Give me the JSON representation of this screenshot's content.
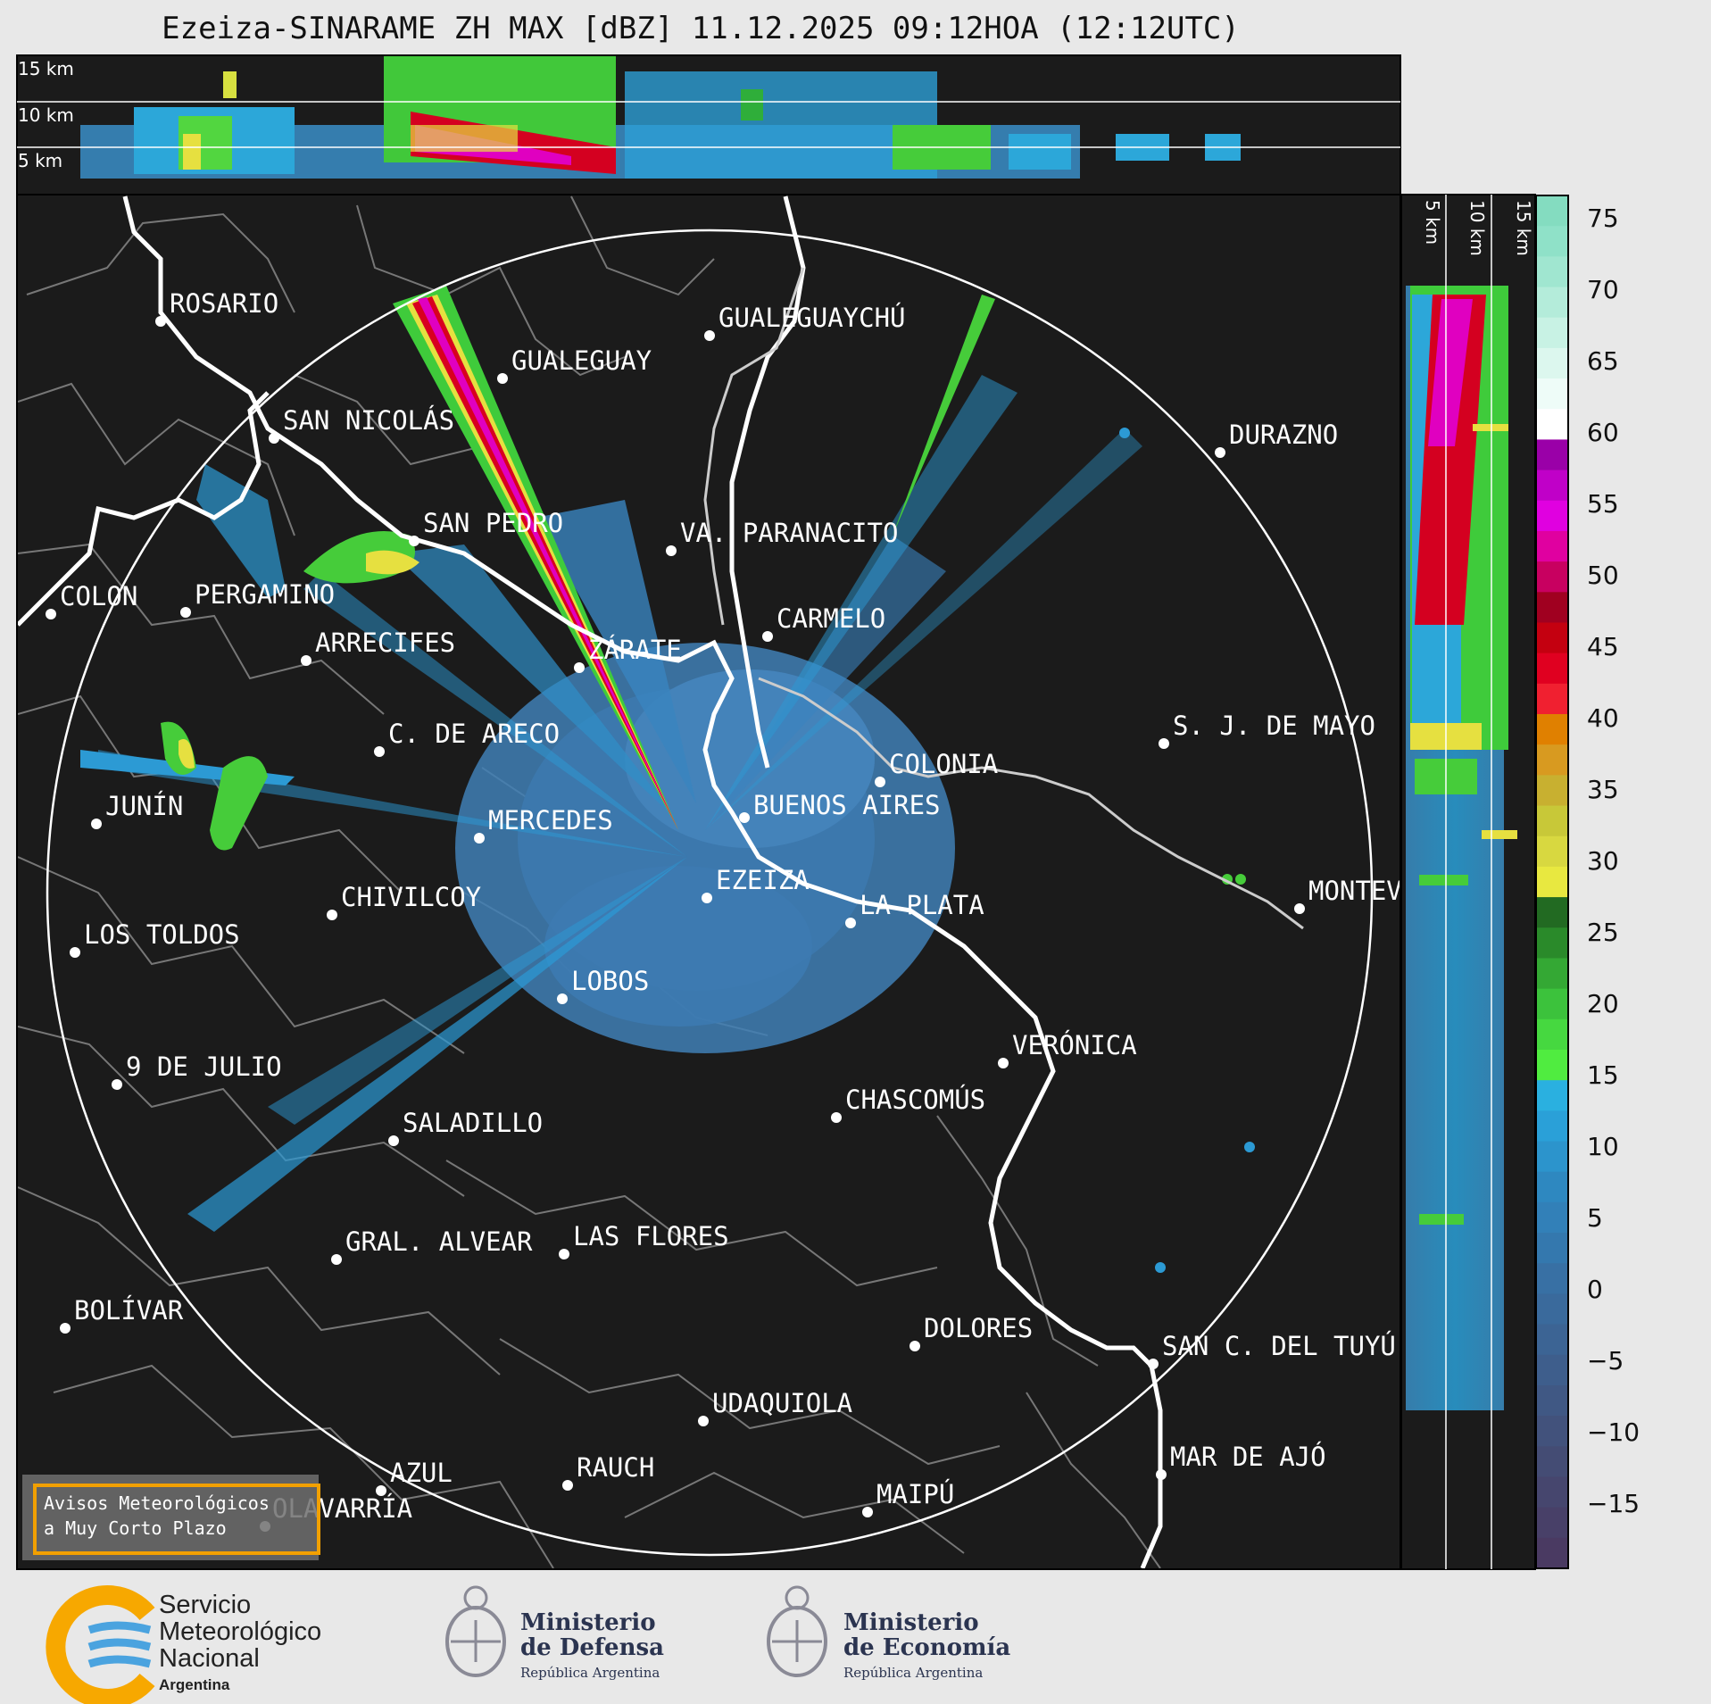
{
  "title": "Ezeiza-SINARAME ZH MAX [dBZ] 11.12.2025 09:12HOA (12:12UTC)",
  "altitude_labels": [
    "15 km",
    "10 km",
    "5 km"
  ],
  "side_altitude_labels": [
    "5 km",
    "10 km",
    "15 km"
  ],
  "places": [
    {
      "name": "ROSARIO",
      "label": "ROSARIO"
    },
    {
      "name": "GUALEGUAYCHU",
      "label": "GUALEGUAYCHÚ"
    },
    {
      "name": "GUALEGUAY",
      "label": "GUALEGUAY"
    },
    {
      "name": "SAN-NICOLAS",
      "label": "SAN NICOLÁS"
    },
    {
      "name": "DURAZNO",
      "label": "DURAZNO"
    },
    {
      "name": "SAN-PEDRO",
      "label": "SAN PEDRO"
    },
    {
      "name": "VA-PARANACITO",
      "label": "VA. PARANACITO"
    },
    {
      "name": "COLON",
      "label": "COLON"
    },
    {
      "name": "PERGAMINO",
      "label": "PERGAMINO"
    },
    {
      "name": "CARMELO",
      "label": "CARMELO"
    },
    {
      "name": "ARRECIFES",
      "label": "ARRECIFES"
    },
    {
      "name": "ZARATE",
      "label": "ZÁRATE"
    },
    {
      "name": "C-DE-ARECO",
      "label": "C. DE ARECO"
    },
    {
      "name": "S-J-DE-MAYO",
      "label": "S. J. DE MAYO"
    },
    {
      "name": "COLONIA",
      "label": "COLONIA"
    },
    {
      "name": "JUNIN",
      "label": "JUNÍN"
    },
    {
      "name": "MERCEDES",
      "label": "MERCEDES"
    },
    {
      "name": "BUENOS-AIRES",
      "label": "BUENOS AIRES"
    },
    {
      "name": "EZEIZA",
      "label": "EZEIZA"
    },
    {
      "name": "MONTEVIDEO",
      "label": "MONTEV"
    },
    {
      "name": "CHIVILCOY",
      "label": "CHIVILCOY"
    },
    {
      "name": "LA-PLATA",
      "label": "LA PLATA"
    },
    {
      "name": "LOS-TOLDOS",
      "label": "LOS TOLDOS"
    },
    {
      "name": "LOBOS",
      "label": "LOBOS"
    },
    {
      "name": "VERONICA",
      "label": "VERÓNICA"
    },
    {
      "name": "9-DE-JULIO",
      "label": "9 DE JULIO"
    },
    {
      "name": "CHASCOMUS",
      "label": "CHASCOMÚS"
    },
    {
      "name": "SALADILLO",
      "label": "SALADILLO"
    },
    {
      "name": "GRAL-ALVEAR",
      "label": "GRAL. ALVEAR"
    },
    {
      "name": "LAS-FLORES",
      "label": "LAS FLORES"
    },
    {
      "name": "BOLIVAR",
      "label": "BOLÍVAR"
    },
    {
      "name": "DOLORES",
      "label": "DOLORES"
    },
    {
      "name": "SAN-C-DEL-TUYU",
      "label": "SAN C. DEL TUYÚ"
    },
    {
      "name": "UDAQUIOLA",
      "label": "UDAQUIOLA"
    },
    {
      "name": "MAR-DE-AJO",
      "label": "MAR DE AJÓ"
    },
    {
      "name": "AZUL",
      "label": "AZUL"
    },
    {
      "name": "RAUCH",
      "label": "RAUCH"
    },
    {
      "name": "OLAVARRIA",
      "label": "OLAVARRÍA"
    },
    {
      "name": "MAIPU",
      "label": "MAIPÚ"
    }
  ],
  "colorbar": {
    "unit": "dBZ",
    "ticks": [
      "75",
      "70",
      "65",
      "60",
      "55",
      "50",
      "45",
      "40",
      "35",
      "30",
      "25",
      "20",
      "15",
      "10",
      "5",
      "0",
      "−5",
      "−10",
      "−15"
    ]
  },
  "warning": {
    "line1": "Avisos Meteorológicos",
    "line2": "a Muy Corto Plazo"
  },
  "logos": {
    "smn": {
      "line1": "Servicio",
      "line2": "Meteorológico",
      "line3": "Nacional",
      "line4": "Argentina"
    },
    "defensa": {
      "line1": "Ministerio",
      "line2": "de Defensa",
      "line3": "República Argentina"
    },
    "economia": {
      "line1": "Ministerio",
      "line2": "de Economía",
      "line3": "República Argentina"
    }
  },
  "colors": {
    "background": "#1b1b1b",
    "smn_orange": "#f7a800",
    "smn_blue": "#4aa3df"
  }
}
